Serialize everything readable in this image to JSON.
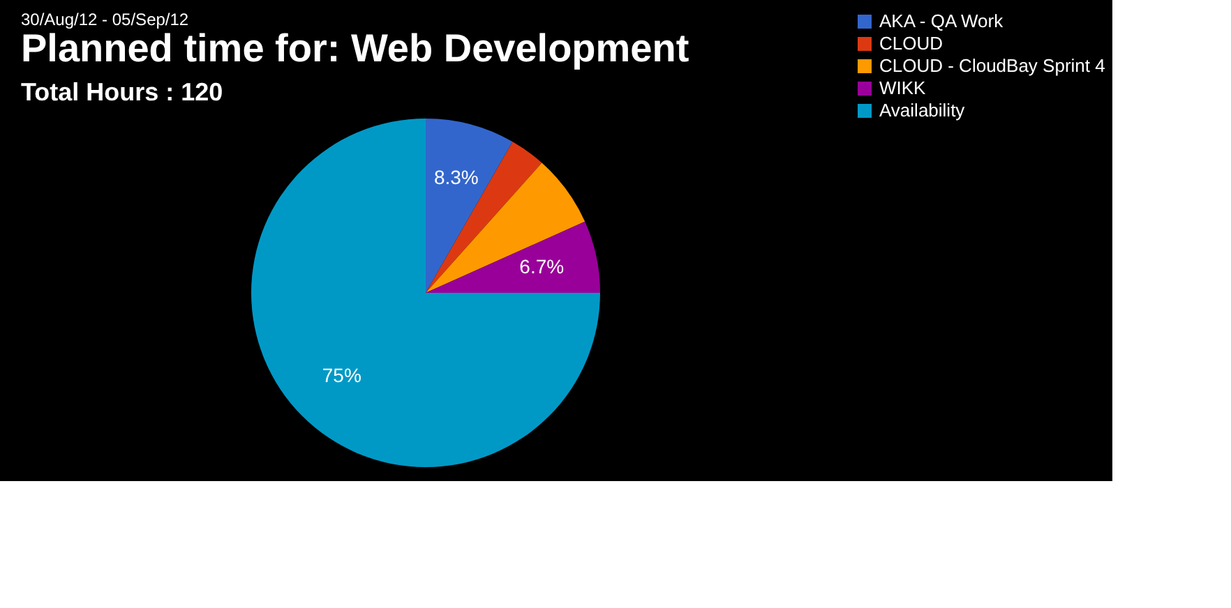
{
  "chart_data": {
    "type": "pie",
    "title": "Planned time for: Web Development",
    "subtitle": "Total Hours : 120",
    "annotations": [
      "30/Aug/12 - 05/Sep/12"
    ],
    "categories": [
      "AKA - QA Work",
      "CLOUD",
      "CLOUD - CloudBay Sprint 4",
      "WIKK",
      "Availability"
    ],
    "values": [
      8.3,
      3.3,
      6.7,
      6.7,
      75
    ],
    "colors": [
      "#3366cc",
      "#dc3912",
      "#ff9900",
      "#990099",
      "#0099c6"
    ],
    "value_labels": [
      "8.3%",
      null,
      null,
      "6.7%",
      "75%"
    ],
    "legend": "right"
  }
}
